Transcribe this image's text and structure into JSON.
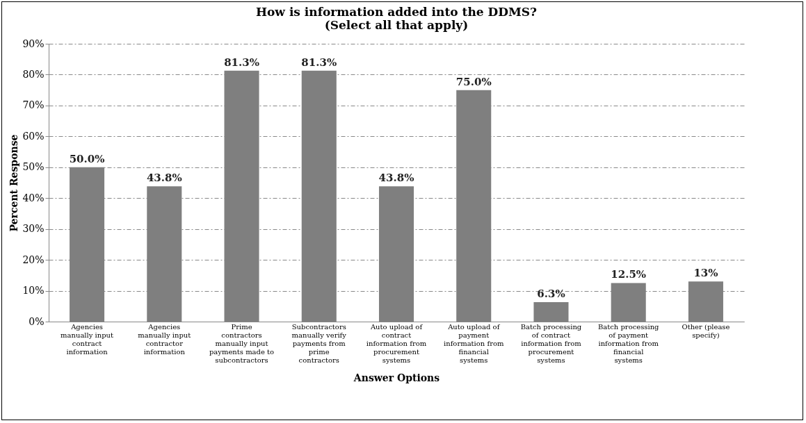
{
  "chart_data": {
    "type": "bar",
    "title": "How is information added into the DDMS?\n(Select all that apply)",
    "xlabel": "Answer Options",
    "ylabel": "Percent Response",
    "categories": [
      "Agencies manually input contract information",
      "Agencies manually input contractor information",
      "Prime contractors manually input payments made to subcontractors",
      "Subcontractors manually verify payments from prime contractors",
      "Auto upload of contract information from procurement systems",
      "Auto upload of payment information from financial systems",
      "Batch processing of contract information from procurement systems",
      "Batch processing of payment information from financial systems",
      "Other (please specify)"
    ],
    "values": [
      50.0,
      43.8,
      81.3,
      81.3,
      43.8,
      75.0,
      6.3,
      12.5,
      13
    ],
    "value_labels": [
      "50.0%",
      "43.8%",
      "81.3%",
      "81.3%",
      "43.8%",
      "75.0%",
      "6.3%",
      "12.5%",
      "13%"
    ],
    "color": "#7f7f7f",
    "ylim": [
      0,
      90
    ],
    "yticks": [
      {
        "value": 0,
        "label": "0%"
      },
      {
        "value": 10,
        "label": "10%"
      },
      {
        "value": 20,
        "label": "20%"
      },
      {
        "value": 30,
        "label": "30%"
      },
      {
        "value": 40,
        "label": "40%"
      },
      {
        "value": 50,
        "label": "50%"
      },
      {
        "value": 60,
        "label": "60%"
      },
      {
        "value": 70,
        "label": "70%"
      },
      {
        "value": 80,
        "label": "80%"
      },
      {
        "value": 90,
        "label": "90%"
      }
    ],
    "grid": "y"
  }
}
